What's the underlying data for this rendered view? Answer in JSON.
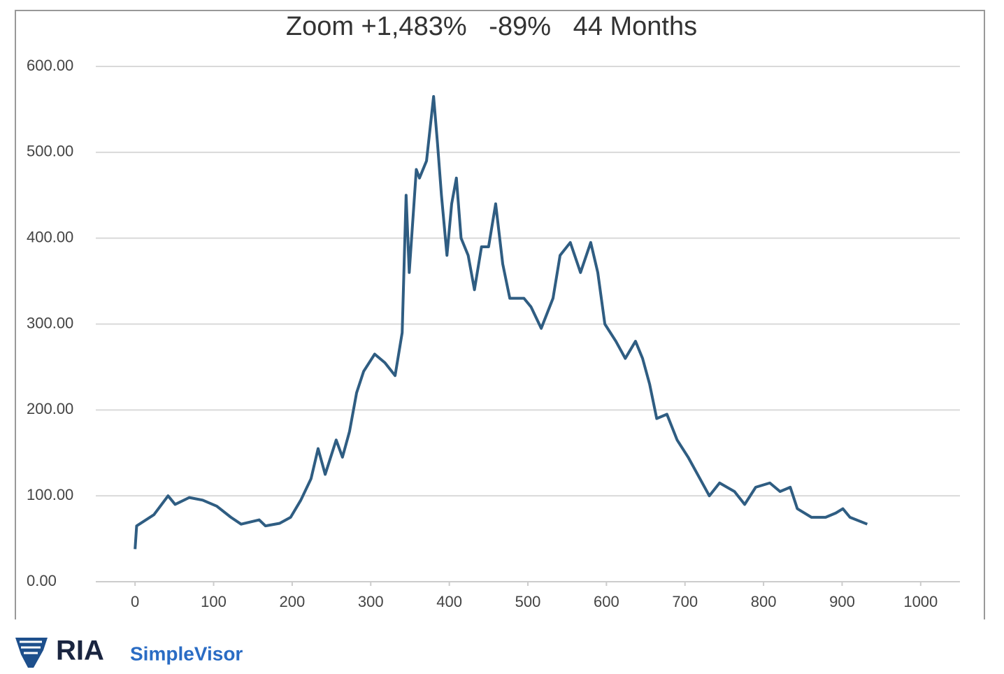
{
  "chart_data": {
    "type": "line",
    "title": "Zoom +1,483%   -89%   44 Months",
    "x": [
      0,
      2,
      24,
      42,
      51,
      69,
      86,
      104,
      122,
      135,
      158,
      166,
      184,
      198,
      211,
      224,
      233,
      242,
      256,
      264,
      273,
      282,
      291,
      305,
      318,
      331,
      340,
      345,
      349,
      358,
      362,
      371,
      380,
      385,
      390,
      397,
      403,
      409,
      415,
      424,
      432,
      441,
      450,
      459,
      468,
      477,
      486,
      495,
      504,
      517,
      532,
      541,
      554,
      567,
      580,
      589,
      598,
      612,
      624,
      637,
      646,
      655,
      664,
      677,
      690,
      704,
      719,
      731,
      744,
      763,
      776,
      790,
      808,
      821,
      834,
      843,
      861,
      879,
      892,
      901,
      910,
      932
    ],
    "series": [
      {
        "name": "Zoom",
        "color": "#2f5d82",
        "values": [
          38,
          65,
          78,
          100,
          90,
          98,
          95,
          88,
          75,
          67,
          72,
          65,
          68,
          75,
          95,
          120,
          155,
          125,
          165,
          145,
          175,
          220,
          245,
          265,
          255,
          240,
          290,
          450,
          360,
          480,
          470,
          490,
          565,
          510,
          450,
          380,
          440,
          470,
          400,
          380,
          340,
          390,
          390,
          440,
          370,
          330,
          330,
          330,
          320,
          295,
          330,
          380,
          395,
          360,
          395,
          360,
          300,
          280,
          260,
          280,
          260,
          230,
          190,
          195,
          165,
          145,
          120,
          100,
          115,
          105,
          90,
          110,
          115,
          105,
          110,
          85,
          75,
          75,
          80,
          85,
          75,
          67
        ]
      }
    ],
    "xlim": [
      -50,
      1050
    ],
    "xticks": [
      0,
      100,
      200,
      300,
      400,
      500,
      600,
      700,
      800,
      900,
      1000
    ],
    "ylim": [
      0,
      600
    ],
    "yticks": [
      {
        "value": 0,
        "label": "0.00"
      },
      {
        "value": 100,
        "label": "100.00"
      },
      {
        "value": 200,
        "label": "200.00"
      },
      {
        "value": 300,
        "label": "300.00"
      },
      {
        "value": 400,
        "label": "400.00"
      },
      {
        "value": 500,
        "label": "500.00"
      },
      {
        "value": 600,
        "label": "600.00"
      }
    ],
    "grid": true
  },
  "footer": {
    "brand": "RIA",
    "product": "SimpleVisor"
  }
}
